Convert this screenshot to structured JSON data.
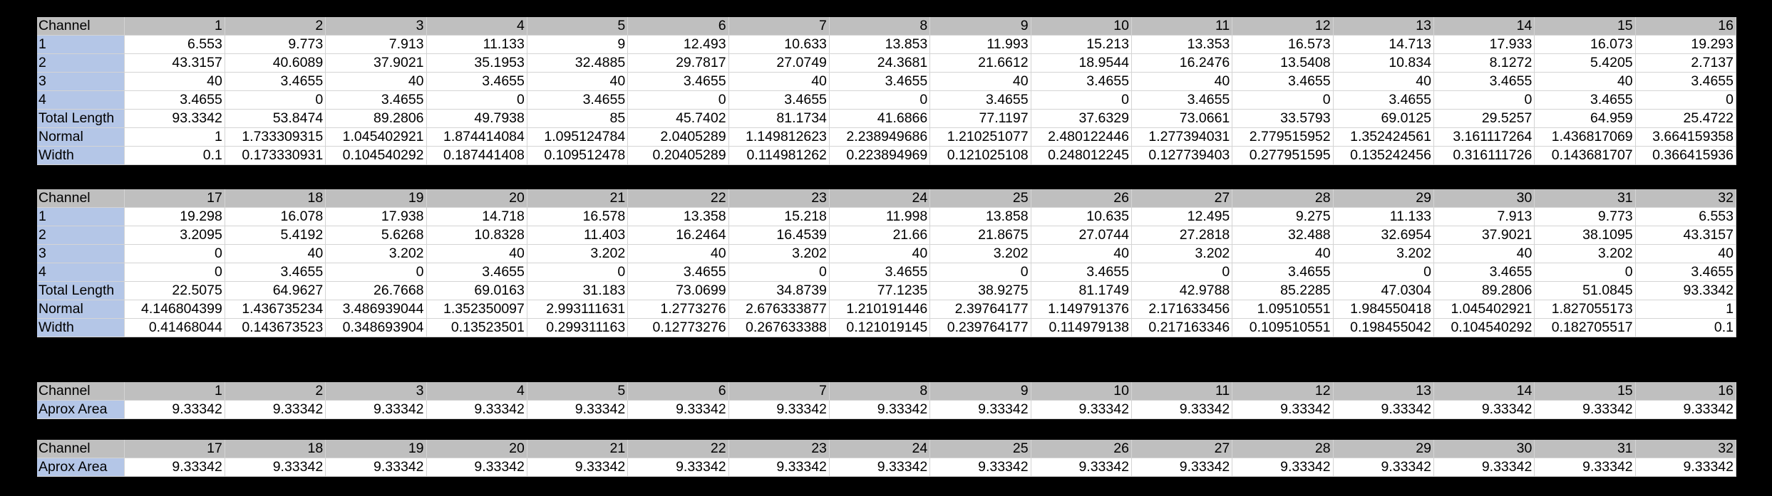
{
  "table1": {
    "header": [
      "Channel",
      "1",
      "2",
      "3",
      "4",
      "5",
      "6",
      "7",
      "8",
      "9",
      "10",
      "11",
      "12",
      "13",
      "14",
      "15",
      "16"
    ],
    "rows": [
      [
        "1",
        "6.553",
        "9.773",
        "7.913",
        "11.133",
        "9",
        "12.493",
        "10.633",
        "13.853",
        "11.993",
        "15.213",
        "13.353",
        "16.573",
        "14.713",
        "17.933",
        "16.073",
        "19.293"
      ],
      [
        "2",
        "43.3157",
        "40.6089",
        "37.9021",
        "35.1953",
        "32.4885",
        "29.7817",
        "27.0749",
        "24.3681",
        "21.6612",
        "18.9544",
        "16.2476",
        "13.5408",
        "10.834",
        "8.1272",
        "5.4205",
        "2.7137"
      ],
      [
        "3",
        "40",
        "3.4655",
        "40",
        "3.4655",
        "40",
        "3.4655",
        "40",
        "3.4655",
        "40",
        "3.4655",
        "40",
        "3.4655",
        "40",
        "3.4655",
        "40",
        "3.4655"
      ],
      [
        "4",
        "3.4655",
        "0",
        "3.4655",
        "0",
        "3.4655",
        "0",
        "3.4655",
        "0",
        "3.4655",
        "0",
        "3.4655",
        "0",
        "3.4655",
        "0",
        "3.4655",
        "0"
      ],
      [
        "Total Length",
        "93.3342",
        "53.8474",
        "89.2806",
        "49.7938",
        "85",
        "45.7402",
        "81.1734",
        "41.6866",
        "77.1197",
        "37.6329",
        "73.0661",
        "33.5793",
        "69.0125",
        "29.5257",
        "64.959",
        "25.4722"
      ],
      [
        "Normal",
        "1",
        "1.733309315",
        "1.045402921",
        "1.874414084",
        "1.095124784",
        "2.0405289",
        "1.149812623",
        "2.238949686",
        "1.210251077",
        "2.480122446",
        "1.277394031",
        "2.779515952",
        "1.352424561",
        "3.161117264",
        "1.436817069",
        "3.664159358"
      ],
      [
        "Width",
        "0.1",
        "0.173330931",
        "0.104540292",
        "0.187441408",
        "0.109512478",
        "0.20405289",
        "0.114981262",
        "0.223894969",
        "0.121025108",
        "0.248012245",
        "0.127739403",
        "0.277951595",
        "0.135242456",
        "0.316111726",
        "0.143681707",
        "0.366415936"
      ]
    ]
  },
  "table2": {
    "header": [
      "Channel",
      "17",
      "18",
      "19",
      "20",
      "21",
      "22",
      "23",
      "24",
      "25",
      "26",
      "27",
      "28",
      "29",
      "30",
      "31",
      "32"
    ],
    "rows": [
      [
        "1",
        "19.298",
        "16.078",
        "17.938",
        "14.718",
        "16.578",
        "13.358",
        "15.218",
        "11.998",
        "13.858",
        "10.635",
        "12.495",
        "9.275",
        "11.133",
        "7.913",
        "9.773",
        "6.553"
      ],
      [
        "2",
        "3.2095",
        "5.4192",
        "5.6268",
        "10.8328",
        "11.403",
        "16.2464",
        "16.4539",
        "21.66",
        "21.8675",
        "27.0744",
        "27.2818",
        "32.488",
        "32.6954",
        "37.9021",
        "38.1095",
        "43.3157"
      ],
      [
        "3",
        "0",
        "40",
        "3.202",
        "40",
        "3.202",
        "40",
        "3.202",
        "40",
        "3.202",
        "40",
        "3.202",
        "40",
        "3.202",
        "40",
        "3.202",
        "40"
      ],
      [
        "4",
        "0",
        "3.4655",
        "0",
        "3.4655",
        "0",
        "3.4655",
        "0",
        "3.4655",
        "0",
        "3.4655",
        "0",
        "3.4655",
        "0",
        "3.4655",
        "0",
        "3.4655"
      ],
      [
        "Total Length",
        "22.5075",
        "64.9627",
        "26.7668",
        "69.0163",
        "31.183",
        "73.0699",
        "34.8739",
        "77.1235",
        "38.9275",
        "81.1749",
        "42.9788",
        "85.2285",
        "47.0304",
        "89.2806",
        "51.0845",
        "93.3342"
      ],
      [
        "Normal",
        "4.146804399",
        "1.436735234",
        "3.486939044",
        "1.352350097",
        "2.993111631",
        "1.2773276",
        "2.676333877",
        "1.210191446",
        "2.39764177",
        "1.149791376",
        "2.171633456",
        "1.09510551",
        "1.984550418",
        "1.045402921",
        "1.827055173",
        "1"
      ],
      [
        "Width",
        "0.41468044",
        "0.143673523",
        "0.348693904",
        "0.13523501",
        "0.299311163",
        "0.12773276",
        "0.267633388",
        "0.121019145",
        "0.239764177",
        "0.114979138",
        "0.217163346",
        "0.109510551",
        "0.198455042",
        "0.104540292",
        "0.182705517",
        "0.1"
      ]
    ]
  },
  "table3": {
    "header": [
      "Channel",
      "1",
      "2",
      "3",
      "4",
      "5",
      "6",
      "7",
      "8",
      "9",
      "10",
      "11",
      "12",
      "13",
      "14",
      "15",
      "16"
    ],
    "rows": [
      [
        "Aprox Area",
        "9.33342",
        "9.33342",
        "9.33342",
        "9.33342",
        "9.33342",
        "9.33342",
        "9.33342",
        "9.33342",
        "9.33342",
        "9.33342",
        "9.33342",
        "9.33342",
        "9.33342",
        "9.33342",
        "9.33342",
        "9.33342"
      ]
    ]
  },
  "table4": {
    "header": [
      "Channel",
      "17",
      "18",
      "19",
      "20",
      "21",
      "22",
      "23",
      "24",
      "25",
      "26",
      "27",
      "28",
      "29",
      "30",
      "31",
      "32"
    ],
    "rows": [
      [
        "Aprox Area",
        "9.33342",
        "9.33342",
        "9.33342",
        "9.33342",
        "9.33342",
        "9.33342",
        "9.33342",
        "9.33342",
        "9.33342",
        "9.33342",
        "9.33342",
        "9.33342",
        "9.33342",
        "9.33342",
        "9.33342",
        "9.33342"
      ]
    ]
  }
}
